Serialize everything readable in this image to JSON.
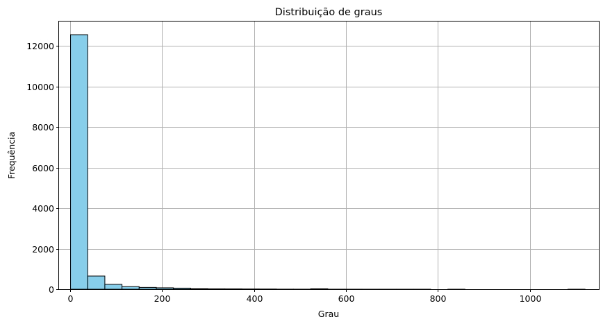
{
  "chart_data": {
    "type": "bar",
    "title": "Distribuição de graus",
    "xlabel": "Grau",
    "ylabel": "Frequência",
    "bar_color": "#87ceeb",
    "edge_color": "#000000",
    "grid": true,
    "xlim": [
      -24,
      1150
    ],
    "ylim": [
      0,
      13200
    ],
    "xticks": [
      0,
      200,
      400,
      600,
      800,
      1000
    ],
    "yticks": [
      0,
      2000,
      4000,
      6000,
      8000,
      10000,
      12000
    ],
    "bin_edges": [
      1,
      38.3,
      75.6,
      112.9,
      150.2,
      187.5,
      224.8,
      262.1,
      299.4,
      336.7,
      374,
      411.3,
      448.6,
      485.9,
      523.2,
      560.5,
      597.8,
      635.1,
      672.4,
      709.7,
      747,
      784.3,
      821.6,
      858.9,
      896.2,
      933.5,
      970.8,
      1008.1,
      1045.4,
      1082.7,
      1120
    ],
    "values": [
      12550,
      650,
      240,
      130,
      90,
      70,
      55,
      30,
      22,
      20,
      15,
      12,
      5,
      4,
      25,
      3,
      2,
      1,
      1,
      1,
      1,
      0,
      1,
      0,
      0,
      0,
      0,
      0,
      0,
      1
    ]
  }
}
